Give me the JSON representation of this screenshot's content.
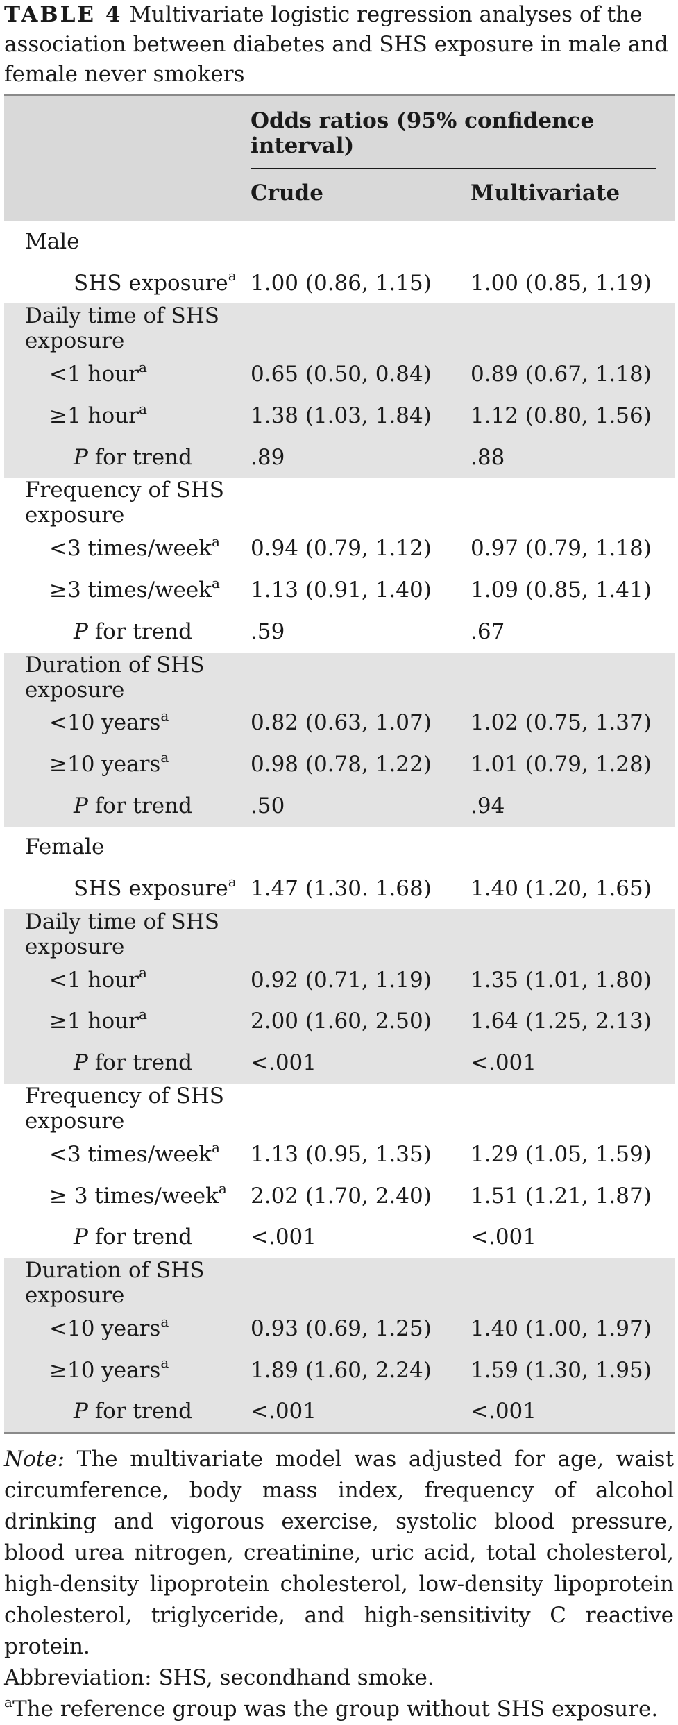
{
  "caption": {
    "label": "TABLE 4",
    "text": "Multivariate logistic regression analyses of the association between diabetes and SHS exposure in male and female never smokers"
  },
  "header": {
    "group": "Odds ratios (95% confidence interval)",
    "crude": "Crude",
    "multivariate": "Multivariate"
  },
  "rows": [
    {
      "label": "Male",
      "sup": "",
      "crude": "",
      "multi": ""
    },
    {
      "label": "SHS exposure",
      "sup": "a",
      "crude": "1.00 (0.86, 1.15)",
      "multi": "1.00 (0.85, 1.19)"
    },
    {
      "label": "Daily time of SHS exposure",
      "sup": "",
      "crude": "",
      "multi": ""
    },
    {
      "label": "<1 hour",
      "sup": "a",
      "crude": "0.65 (0.50, 0.84)",
      "multi": "0.89 (0.67, 1.18)"
    },
    {
      "label": "≥1 hour",
      "sup": "a",
      "crude": "1.38 (1.03, 1.84)",
      "multi": "1.12 (0.80, 1.56)"
    },
    {
      "label_italic": "P",
      "label": " for trend",
      "sup": "",
      "crude": ".89",
      "multi": ".88"
    },
    {
      "label": "Frequency of SHS exposure",
      "sup": "",
      "crude": "",
      "multi": ""
    },
    {
      "label": "<3 times/week",
      "sup": "a",
      "crude": "0.94 (0.79, 1.12)",
      "multi": "0.97 (0.79, 1.18)"
    },
    {
      "label": "≥3 times/week",
      "sup": "a",
      "crude": "1.13 (0.91, 1.40)",
      "multi": "1.09 (0.85, 1.41)"
    },
    {
      "label_italic": "P",
      "label": " for trend",
      "sup": "",
      "crude": ".59",
      "multi": ".67"
    },
    {
      "label": "Duration of SHS exposure",
      "sup": "",
      "crude": "",
      "multi": ""
    },
    {
      "label": "<10 years",
      "sup": "a",
      "crude": "0.82 (0.63, 1.07)",
      "multi": "1.02 (0.75, 1.37)"
    },
    {
      "label": "≥10 years",
      "sup": "a",
      "crude": "0.98 (0.78, 1.22)",
      "multi": "1.01 (0.79, 1.28)"
    },
    {
      "label_italic": "P",
      "label": " for trend",
      "sup": "",
      "crude": ".50",
      "multi": ".94"
    },
    {
      "label": "Female",
      "sup": "",
      "crude": "",
      "multi": ""
    },
    {
      "label": "SHS exposure",
      "sup": "a",
      "crude": "1.47 (1.30. 1.68)",
      "multi": "1.40 (1.20, 1.65)"
    },
    {
      "label": "Daily time of SHS exposure",
      "sup": "",
      "crude": "",
      "multi": ""
    },
    {
      "label": "<1 hour",
      "sup": "a",
      "crude": "0.92 (0.71, 1.19)",
      "multi": "1.35 (1.01, 1.80)"
    },
    {
      "label": "≥1 hour",
      "sup": "a",
      "crude": "2.00 (1.60, 2.50)",
      "multi": "1.64 (1.25, 2.13)"
    },
    {
      "label_italic": "P",
      "label": " for trend",
      "sup": "",
      "crude": "<.001",
      "multi": "<.001"
    },
    {
      "label": "Frequency of SHS exposure",
      "sup": "",
      "crude": "",
      "multi": ""
    },
    {
      "label": "<3 times/week",
      "sup": "a",
      "crude": "1.13 (0.95, 1.35)",
      "multi": "1.29 (1.05, 1.59)"
    },
    {
      "label": "≥ 3 times/week",
      "sup": "a",
      "crude": "2.02 (1.70, 2.40)",
      "multi": "1.51 (1.21, 1.87)"
    },
    {
      "label_italic": "P",
      "label": " for trend",
      "sup": "",
      "crude": "<.001",
      "multi": "<.001"
    },
    {
      "label": "Duration of SHS exposure",
      "sup": "",
      "crude": "",
      "multi": ""
    },
    {
      "label": "<10 years",
      "sup": "a",
      "crude": "0.93 (0.69, 1.25)",
      "multi": "1.40 (1.00, 1.97)"
    },
    {
      "label": "≥10 years",
      "sup": "a",
      "crude": "1.89 (1.60, 2.24)",
      "multi": "1.59 (1.30, 1.95)"
    },
    {
      "label_italic": "P",
      "label": " for trend",
      "sup": "",
      "crude": "<.001",
      "multi": "<.001"
    }
  ],
  "notes": {
    "note_label": "Note:",
    "note_text": " The multivariate model was adjusted for age, waist circumference, body mass index, frequency of alcohol drinking and vigorous exercise, systolic blood pressure, blood urea nitrogen, creatinine, uric acid, total cholesterol, high-density lipoprotein cholesterol, low-density lipoprotein cholesterol, triglyceride, and high-sensitivity C reactive protein.",
    "abbreviation": "Abbreviation: SHS, secondhand smoke.",
    "footnote_mark": "a",
    "footnote_text": "The reference group was the group without SHS exposure."
  }
}
